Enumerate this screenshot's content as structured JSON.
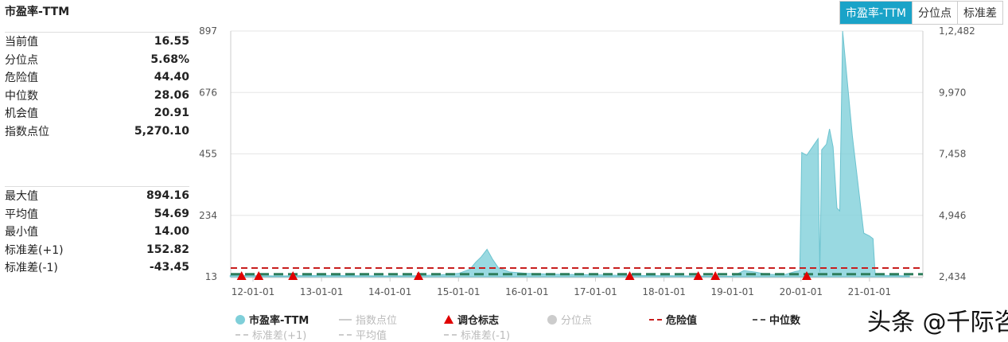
{
  "title": "市盈率-TTM",
  "tabs": [
    {
      "label": "市盈率-TTM",
      "active": true
    },
    {
      "label": "分位点"
    },
    {
      "label": "标准差"
    }
  ],
  "stats1": [
    {
      "label": "当前值",
      "value": "16.55"
    },
    {
      "label": "分位点",
      "value": "5.68%"
    },
    {
      "label": "危险值",
      "value": "44.40"
    },
    {
      "label": "中位数",
      "value": "28.06"
    },
    {
      "label": "机会值",
      "value": "20.91"
    },
    {
      "label": "指数点位",
      "value": "5,270.10"
    }
  ],
  "stats2": [
    {
      "label": "最大值",
      "value": "894.16"
    },
    {
      "label": "平均值",
      "value": "54.69"
    },
    {
      "label": "最小值",
      "value": "14.00"
    },
    {
      "label": "标准差(+1)",
      "value": "152.82"
    },
    {
      "label": "标准差(-1)",
      "value": "-43.45"
    }
  ],
  "watermark": "头条 @千际咨询",
  "chart_data": {
    "type": "area",
    "y_left_ticks": [
      "897",
      "676",
      "455",
      "234",
      "13"
    ],
    "ylim_left": [
      13,
      897
    ],
    "y_right_ticks": [
      "1,2,482",
      "9,970",
      "7,458",
      "4,946",
      "2,434"
    ],
    "x_ticks": [
      "12-01-01",
      "13-01-01",
      "14-01-01",
      "15-01-01",
      "16-01-01",
      "17-01-01",
      "18-01-01",
      "19-01-01",
      "20-01-01",
      "21-01-01"
    ],
    "xlim": [
      "2011-09",
      "2021-08"
    ],
    "grid": true,
    "legend_placement": "bottom",
    "colors": {
      "pe": "#7fcfd9",
      "danger": "#c81e1e",
      "median": "#2e7d5b",
      "marker": "#e00000"
    },
    "series": [
      {
        "name": "市盈率-TTM",
        "points": [
          [
            "2011-09",
            18
          ],
          [
            "2012-01",
            17
          ],
          [
            "2012-06",
            16
          ],
          [
            "2013-01",
            18
          ],
          [
            "2013-06",
            17
          ],
          [
            "2014-01",
            16
          ],
          [
            "2014-06",
            17
          ],
          [
            "2014-10",
            20
          ],
          [
            "2015-01",
            25
          ],
          [
            "2015-03",
            40
          ],
          [
            "2015-04",
            65
          ],
          [
            "2015-05",
            85
          ],
          [
            "2015-06",
            112
          ],
          [
            "2015-07",
            75
          ],
          [
            "2015-08",
            45
          ],
          [
            "2015-10",
            30
          ],
          [
            "2016-01",
            25
          ],
          [
            "2016-06",
            22
          ],
          [
            "2017-01",
            20
          ],
          [
            "2017-06",
            18
          ],
          [
            "2018-01",
            17
          ],
          [
            "2018-06",
            16
          ],
          [
            "2019-01",
            15
          ],
          [
            "2019-03",
            35
          ],
          [
            "2019-05",
            30
          ],
          [
            "2019-07",
            22
          ],
          [
            "2019-10",
            20
          ],
          [
            "2019-12",
            32
          ],
          [
            "2019-12-25",
            35
          ],
          [
            "2020-01-05",
            460
          ],
          [
            "2020-02",
            450
          ],
          [
            "2020-03",
            480
          ],
          [
            "2020-04",
            510
          ],
          [
            "2020-04-10",
            30
          ],
          [
            "2020-04-20",
            470
          ],
          [
            "2020-05-15",
            490
          ],
          [
            "2020-06",
            545
          ],
          [
            "2020-06-20",
            480
          ],
          [
            "2020-07-10",
            260
          ],
          [
            "2020-07-25",
            250
          ],
          [
            "2020-08-10",
            897
          ],
          [
            "2020-10",
            520
          ],
          [
            "2020-12",
            170
          ],
          [
            "2021-01",
            160
          ],
          [
            "2021-01-20",
            150
          ],
          [
            "2021-02",
            20
          ],
          [
            "2021-04",
            18
          ],
          [
            "2021-08",
            16
          ]
        ]
      }
    ],
    "lines": [
      {
        "name": "危险值",
        "value": 44.4
      },
      {
        "name": "中位数",
        "value": 28.06
      }
    ],
    "markers": {
      "name": "调仓标志",
      "dates": [
        "2011-11",
        "2012-02",
        "2012-08",
        "2014-06",
        "2017-07",
        "2018-07",
        "2018-10",
        "2020-02"
      ]
    },
    "legend": [
      {
        "name": "市盈率-TTM",
        "type": "circle",
        "color": "#7fcfd9",
        "active": true
      },
      {
        "name": "指数点位",
        "type": "line",
        "color": "#ccc",
        "active": false
      },
      {
        "name": "调仓标志",
        "type": "triangle",
        "color": "#e00000",
        "active": true
      },
      {
        "name": "分位点",
        "type": "circle",
        "color": "#ccc",
        "active": false
      },
      {
        "name": "危险值",
        "type": "dash",
        "color": "#c81e1e",
        "active": true
      },
      {
        "name": "中位数",
        "type": "dash",
        "color": "#555",
        "active": true
      },
      {
        "name": "标准差(+1)",
        "type": "dash",
        "color": "#ccc",
        "active": false
      },
      {
        "name": "平均值",
        "type": "dash",
        "color": "#ccc",
        "active": false
      },
      {
        "name": "标准差(-1)",
        "type": "dash",
        "color": "#ccc",
        "active": false
      }
    ]
  }
}
